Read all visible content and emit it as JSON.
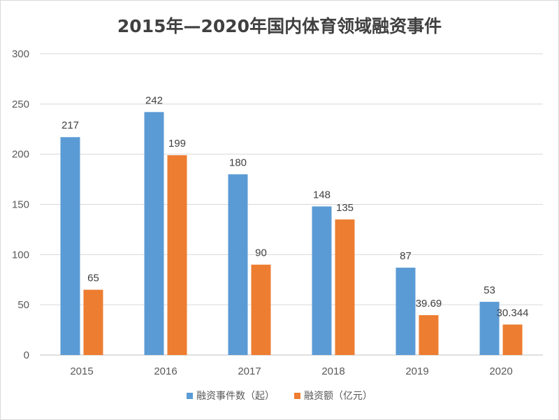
{
  "chart_data": {
    "type": "bar",
    "title": "2015年—2020年国内体育领域融资事件",
    "categories": [
      "2015",
      "2016",
      "2017",
      "2018",
      "2019",
      "2020"
    ],
    "series": [
      {
        "name": "融资事件数（起）",
        "values": [
          217,
          242,
          180,
          148,
          87,
          53
        ],
        "labels": [
          "217",
          "242",
          "180",
          "148",
          "87",
          "53"
        ],
        "color": "#5b9bd5"
      },
      {
        "name": "融资额（亿元）",
        "values": [
          65,
          199,
          90,
          135,
          39.69,
          30.344
        ],
        "labels": [
          "65",
          "199",
          "90",
          "135",
          "39.69",
          "30.344"
        ],
        "color": "#ed7d31"
      }
    ],
    "ylim": [
      0,
      300
    ],
    "yticks": [
      0,
      50,
      100,
      150,
      200,
      250,
      300
    ],
    "grid": true,
    "legend_position": "bottom",
    "xlabel": "",
    "ylabel": ""
  }
}
